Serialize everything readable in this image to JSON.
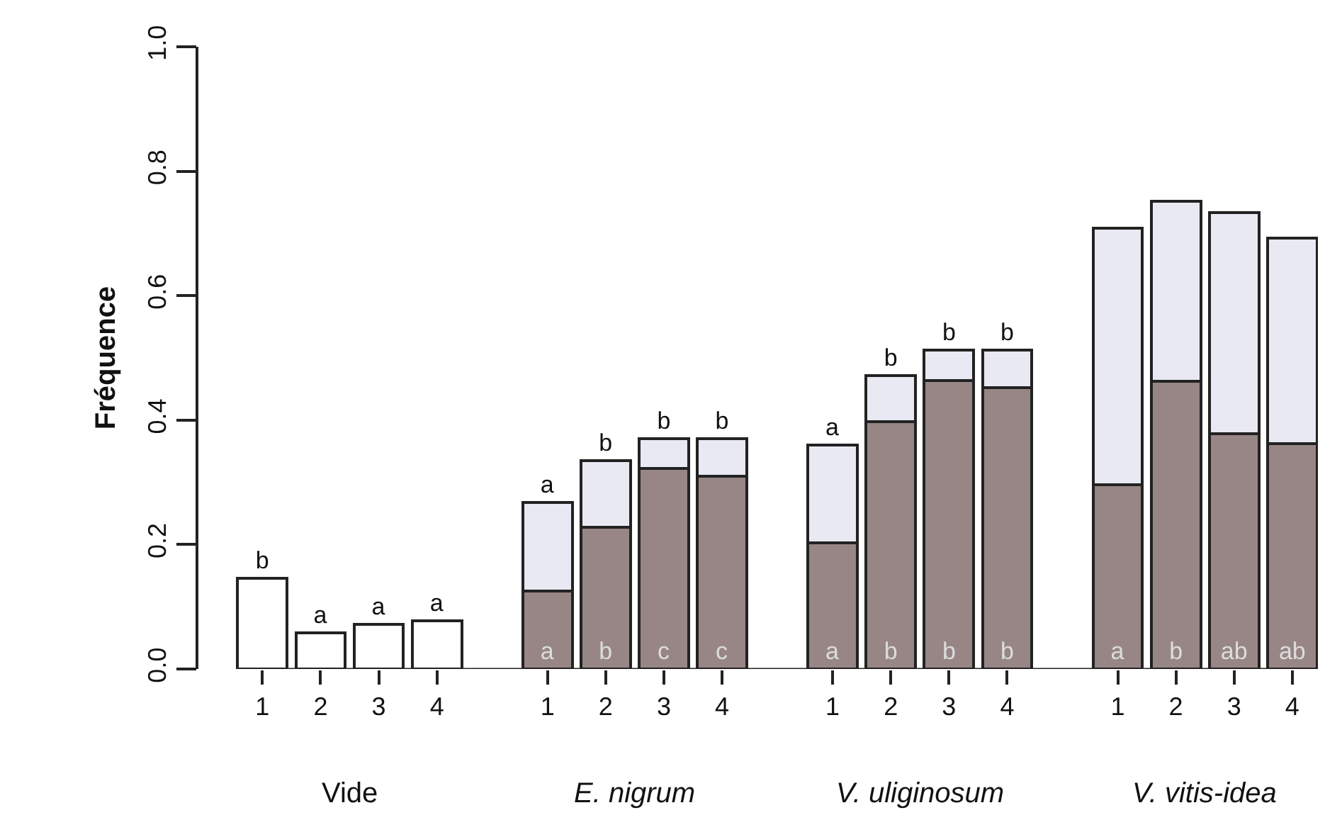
{
  "chart_data": {
    "type": "bar",
    "stacked": true,
    "ylabel": "Fréquence",
    "categories": [
      "1",
      "2",
      "3",
      "4",
      "1",
      "2",
      "3",
      "4",
      "1",
      "2",
      "3",
      "4",
      "1",
      "2",
      "3",
      "4"
    ],
    "annotations": [
      "Vide",
      "E. nigrum",
      "V. uliginosum",
      "V. vitis-idea"
    ],
    "series": [
      {
        "color": "#978685",
        "values": [
          null,
          null,
          null,
          null,
          0.125,
          0.228,
          0.322,
          0.31,
          0.203,
          0.398,
          0.463,
          0.452,
          0.296,
          0.462,
          0.378,
          0.362
        ],
        "value_labels": [
          null,
          null,
          null,
          null,
          "a",
          "b",
          "c",
          "c",
          "a",
          "b",
          "b",
          "b",
          "a",
          "b",
          "ab",
          "ab"
        ]
      },
      {
        "colors": [
          "#ffffff",
          "#ffffff",
          "#ffffff",
          "#ffffff",
          "#e9e9f3",
          "#e9e9f3",
          "#e9e9f3",
          "#e9e9f3",
          "#e9e9f3",
          "#e9e9f3",
          "#e9e9f3",
          "#e9e9f3",
          "#e9e9f3",
          "#e9e9f3",
          "#e9e9f3",
          "#e9e9f3"
        ],
        "values": [
          0.146,
          0.058,
          0.072,
          0.078,
          0.143,
          0.107,
          0.048,
          0.06,
          0.157,
          0.074,
          0.049,
          0.06,
          0.412,
          0.29,
          0.355,
          0.33
        ],
        "value_labels": [
          "b",
          "a",
          "a",
          "a",
          "a",
          "b",
          "b",
          "b",
          "a",
          "b",
          "b",
          "b",
          null,
          null,
          null,
          null
        ]
      }
    ],
    "ylim": [
      0,
      1
    ],
    "yticks": [
      {
        "value": 0,
        "label": "0.0"
      },
      {
        "value": 0.2,
        "label": "0.2"
      },
      {
        "value": 0.4,
        "label": "0.4"
      },
      {
        "value": 0.6,
        "label": "0.6"
      },
      {
        "value": 0.8,
        "label": "0.8"
      },
      {
        "value": 1,
        "label": "1.0"
      }
    ],
    "grid": false
  }
}
